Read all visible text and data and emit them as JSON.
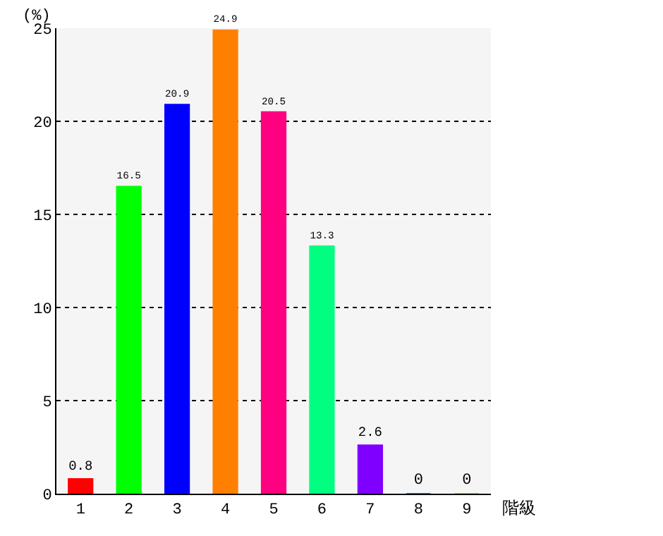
{
  "chart_data": {
    "type": "bar",
    "ylabel": "(%)",
    "xlabel": "階級",
    "categories": [
      "1",
      "2",
      "3",
      "4",
      "5",
      "6",
      "7",
      "8",
      "9"
    ],
    "values": [
      0.8,
      16.5,
      20.9,
      24.9,
      20.5,
      13.3,
      2.6,
      0,
      0
    ],
    "colors": [
      "#ff0000",
      "#00ff00",
      "#0000ff",
      "#ff8000",
      "#ff0080",
      "#00ff80",
      "#8000ff",
      "#0080ff",
      "#80ff00"
    ],
    "ylim": [
      0,
      25
    ],
    "yticks": [
      0,
      5,
      10,
      15,
      20,
      25
    ],
    "grid": "y",
    "data_labels": true
  }
}
